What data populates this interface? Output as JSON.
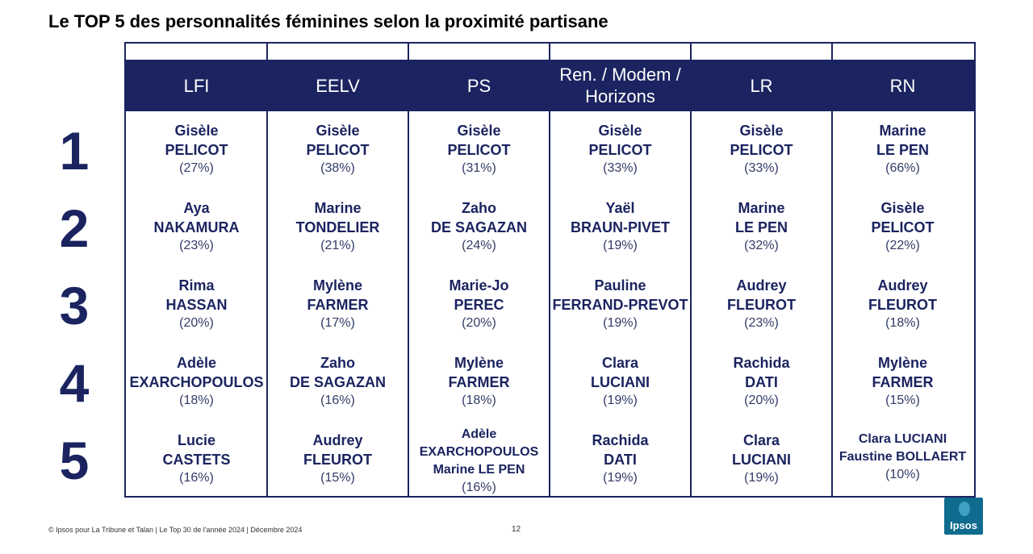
{
  "title": "Le TOP 5 des personnalités féminines selon la proximité partisane",
  "columns": [
    "LFI",
    "EELV",
    "PS",
    "Ren. / Modem / Horizons",
    "LR",
    "RN"
  ],
  "ranks": [
    "1",
    "2",
    "3",
    "4",
    "5"
  ],
  "rows": [
    [
      {
        "l1": "Gisèle",
        "l2": "PELICOT",
        "pct": "(27%)"
      },
      {
        "l1": "Gisèle",
        "l2": "PELICOT",
        "pct": "(38%)"
      },
      {
        "l1": "Gisèle",
        "l2": "PELICOT",
        "pct": "(31%)"
      },
      {
        "l1": "Gisèle",
        "l2": "PELICOT",
        "pct": "(33%)"
      },
      {
        "l1": "Gisèle",
        "l2": "PELICOT",
        "pct": "(33%)"
      },
      {
        "l1": "Marine",
        "l2": "LE PEN",
        "pct": "(66%)"
      }
    ],
    [
      {
        "l1": "Aya",
        "l2": "NAKAMURA",
        "pct": "(23%)"
      },
      {
        "l1": "Marine",
        "l2": "TONDELIER",
        "pct": "(21%)"
      },
      {
        "l1": "Zaho",
        "l2": "DE SAGAZAN",
        "pct": "(24%)"
      },
      {
        "l1": "Yaël",
        "l2": "BRAUN-PIVET",
        "pct": "(19%)"
      },
      {
        "l1": "Marine",
        "l2": "LE PEN",
        "pct": "(32%)"
      },
      {
        "l1": "Gisèle",
        "l2": "PELICOT",
        "pct": "(22%)"
      }
    ],
    [
      {
        "l1": "Rima",
        "l2": "HASSAN",
        "pct": "(20%)"
      },
      {
        "l1": "Mylène",
        "l2": "FARMER",
        "pct": "(17%)"
      },
      {
        "l1": "Marie-Jo",
        "l2": "PEREC",
        "pct": "(20%)"
      },
      {
        "l1": "Pauline",
        "l2": "FERRAND-PREVOT",
        "pct": "(19%)"
      },
      {
        "l1": "Audrey",
        "l2": "FLEUROT",
        "pct": "(23%)"
      },
      {
        "l1": "Audrey",
        "l2": "FLEUROT",
        "pct": "(18%)"
      }
    ],
    [
      {
        "l1": "Adèle",
        "l2": "EXARCHOPOULOS",
        "pct": "(18%)"
      },
      {
        "l1": "Zaho",
        "l2": "DE SAGAZAN",
        "pct": "(16%)"
      },
      {
        "l1": "Mylène",
        "l2": "FARMER",
        "pct": "(18%)"
      },
      {
        "l1": "Clara",
        "l2": "LUCIANI",
        "pct": "(19%)"
      },
      {
        "l1": "Rachida",
        "l2": "DATI",
        "pct": "(20%)"
      },
      {
        "l1": "Mylène",
        "l2": "FARMER",
        "pct": "(15%)"
      }
    ],
    [
      {
        "l1": "Lucie",
        "l2": "CASTETS",
        "pct": "(16%)"
      },
      {
        "l1": "Audrey",
        "l2": "FLEUROT",
        "pct": "(15%)"
      },
      {
        "l1": "Adèle",
        "l2": "EXARCHOPOULOS",
        "l3": "Marine LE PEN",
        "pct": "(16%)"
      },
      {
        "l1": "Rachida",
        "l2": "DATI",
        "pct": "(19%)"
      },
      {
        "l1": "Clara",
        "l2": "LUCIANI",
        "pct": "(19%)"
      },
      {
        "l1": "Clara LUCIANI",
        "l2": "Faustine BOLLAERT",
        "pct": "(10%)"
      }
    ]
  ],
  "footer": "© Ipsos pour La Tribune et Talan | Le Top 30 de l'année 2024 | Décembre 2024",
  "page_number": "12",
  "logo_text": "Ipsos",
  "colors": {
    "navy": "#1b2460",
    "logo_bg": "#0f6c8f"
  }
}
